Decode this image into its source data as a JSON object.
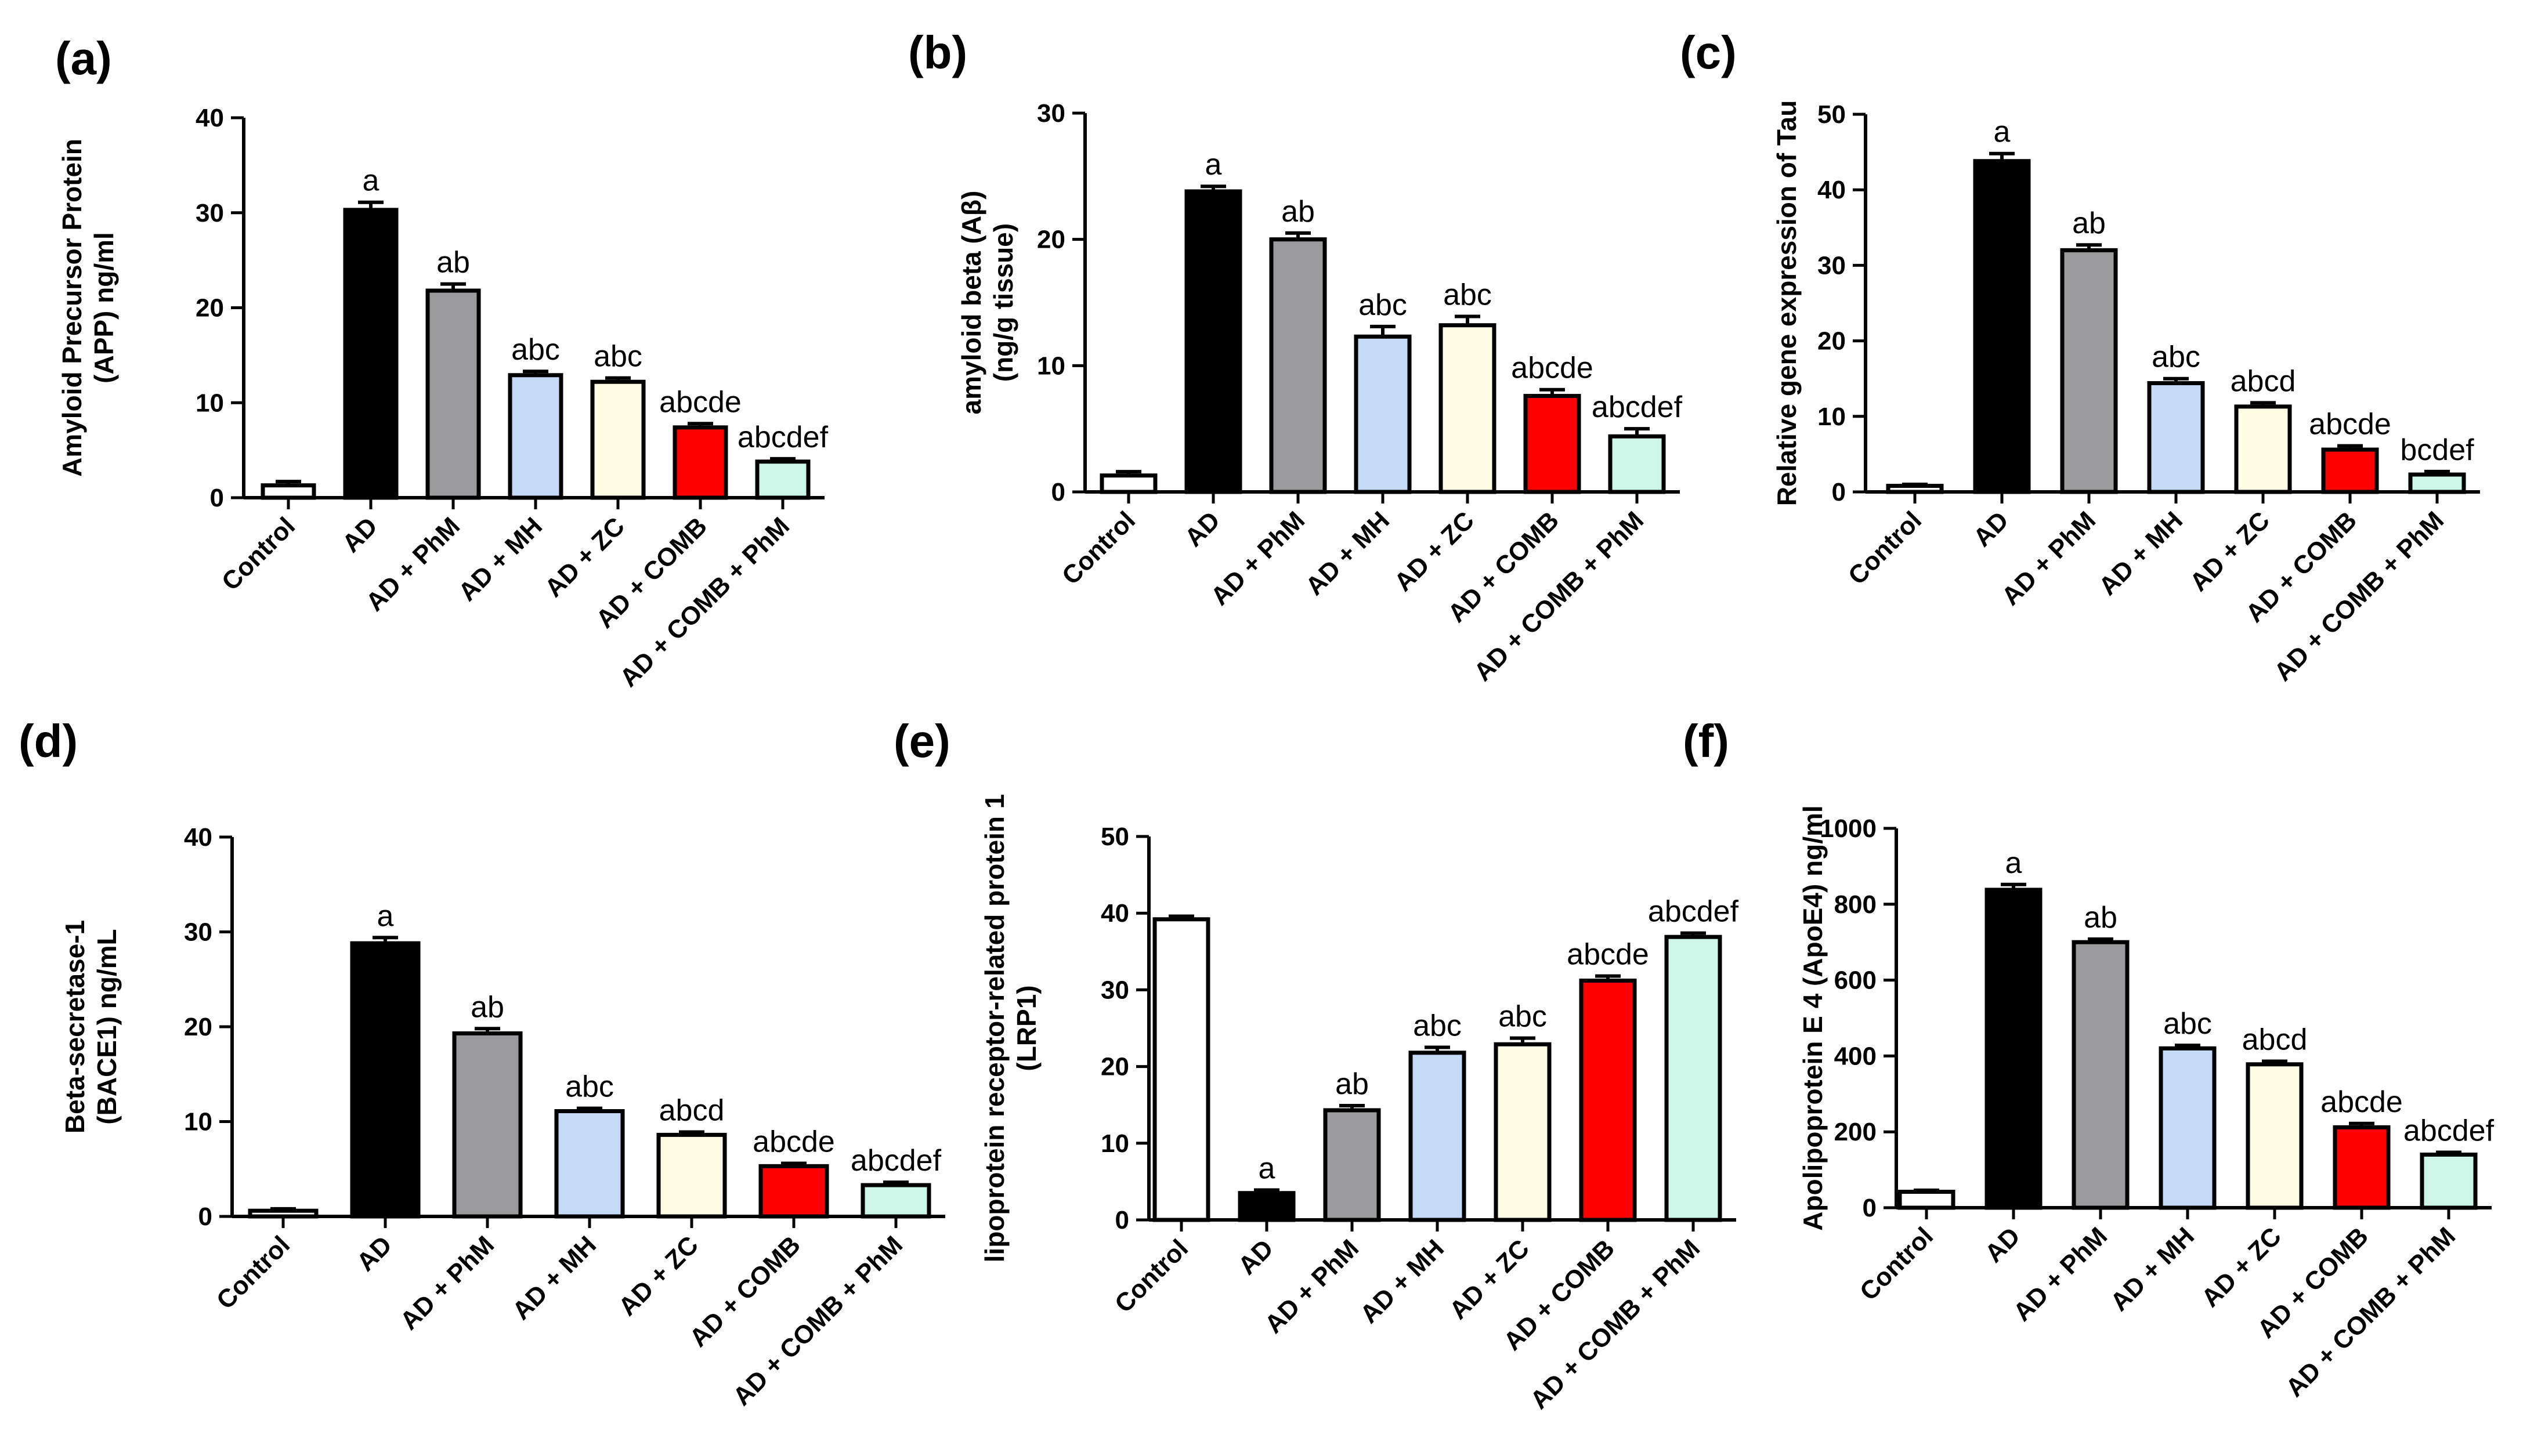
{
  "colors": {
    "Control": "#ffffff",
    "AD": "#000000",
    "AD + PhM": "#9b9b9e",
    "AD + MH": "#c5daf7",
    "AD + ZC": "#fffde3",
    "AD + COMB": "#ff0000",
    "AD + COMB + PhM": "#cdf6e8"
  },
  "chart_data": [
    {
      "type": "bar",
      "panel": "(a)",
      "ylabel": "Amyloid Precursor Protein (APP) ng/ml",
      "ylabel_lines": [
        "Amyloid Precursor Protein",
        "(APP) ng/ml"
      ],
      "categories": [
        "Control",
        "AD",
        "AD + PhM",
        "AD + MH",
        "AD + ZC",
        "AD + COMB",
        "AD + COMB + PhM"
      ],
      "values": [
        1.3,
        30.3,
        21.8,
        12.9,
        12.2,
        7.4,
        3.8
      ],
      "errors": [
        0.4,
        0.8,
        0.7,
        0.4,
        0.4,
        0.4,
        0.3
      ],
      "significance": [
        "",
        "a",
        "ab",
        "abc",
        "abc",
        "abcde",
        "abcdef"
      ],
      "ylim": [
        0,
        40
      ],
      "yticks": [
        0,
        10,
        20,
        30,
        40
      ],
      "grid": false,
      "legend": "none"
    },
    {
      "type": "bar",
      "panel": "(b)",
      "ylabel": "amyloid beta (Aβ) (ng/g tissue)",
      "ylabel_lines": [
        "amyloid beta (Aβ)",
        "(ng/g tissue)"
      ],
      "categories": [
        "Control",
        "AD",
        "AD + PhM",
        "AD + MH",
        "AD + ZC",
        "AD + COMB",
        "AD + COMB + PhM"
      ],
      "values": [
        1.3,
        23.8,
        20.0,
        12.3,
        13.2,
        7.6,
        4.4
      ],
      "errors": [
        0.3,
        0.4,
        0.5,
        0.8,
        0.7,
        0.5,
        0.6
      ],
      "significance": [
        "",
        "a",
        "ab",
        "abc",
        "abc",
        "abcde",
        "abcdef"
      ],
      "ylim": [
        0,
        30
      ],
      "yticks": [
        0,
        10,
        20,
        30
      ],
      "grid": false,
      "legend": "none"
    },
    {
      "type": "bar",
      "panel": "(c)",
      "ylabel": "Relative gene expression of Tau",
      "ylabel_lines": [
        "Relative gene expression of Tau"
      ],
      "categories": [
        "Control",
        "AD",
        "AD + PhM",
        "AD + MH",
        "AD + ZC",
        "AD + COMB",
        "AD + COMB + PhM"
      ],
      "values": [
        0.8,
        43.8,
        32.0,
        14.4,
        11.3,
        5.6,
        2.3
      ],
      "errors": [
        0.2,
        1.0,
        0.7,
        0.6,
        0.5,
        0.5,
        0.4
      ],
      "significance": [
        "",
        "a",
        "ab",
        "abc",
        "abcd",
        "abcde",
        "bcdef"
      ],
      "ylim": [
        0,
        50
      ],
      "yticks": [
        0,
        10,
        20,
        30,
        40,
        50
      ],
      "grid": false,
      "legend": "none"
    },
    {
      "type": "bar",
      "panel": "(d)",
      "ylabel": "Beta-secretase-1 (BACE1) ng/mL",
      "ylabel_lines": [
        "Beta-secretase-1",
        "(BACE1) ng/mL"
      ],
      "categories": [
        "Control",
        "AD",
        "AD + PhM",
        "AD + MH",
        "AD + ZC",
        "AD + COMB",
        "AD + COMB + PhM"
      ],
      "values": [
        0.6,
        28.8,
        19.3,
        11.1,
        8.6,
        5.3,
        3.3
      ],
      "errors": [
        0.2,
        0.6,
        0.5,
        0.3,
        0.3,
        0.3,
        0.3
      ],
      "significance": [
        "",
        "a",
        "ab",
        "abc",
        "abcd",
        "abcde",
        "abcdef"
      ],
      "ylim": [
        0,
        40
      ],
      "yticks": [
        0,
        10,
        20,
        30,
        40
      ],
      "grid": false,
      "legend": "none"
    },
    {
      "type": "bar",
      "panel": "(e)",
      "ylabel": "lipoprotein receptor-related protein 1 (LRP1)",
      "ylabel_lines": [
        "lipoprotein receptor-related protein 1",
        "(LRP1)"
      ],
      "categories": [
        "Control",
        "AD",
        "AD + PhM",
        "AD + MH",
        "AD + ZC",
        "AD + COMB",
        "AD + COMB + PhM"
      ],
      "values": [
        39.2,
        3.5,
        14.3,
        21.8,
        22.9,
        31.2,
        36.9
      ],
      "errors": [
        0.4,
        0.4,
        0.6,
        0.7,
        0.8,
        0.6,
        0.5
      ],
      "significance": [
        "",
        "a",
        "ab",
        "abc",
        "abc",
        "abcde",
        "abcdef"
      ],
      "ylim": [
        0,
        50
      ],
      "yticks": [
        0,
        10,
        20,
        30,
        40,
        50
      ],
      "grid": false,
      "legend": "none"
    },
    {
      "type": "bar",
      "panel": "(f)",
      "ylabel": "Apolipoprotein E 4 (ApoE4) ng/ml",
      "ylabel_lines": [
        "Apolipoprotein E 4 (ApoE4) ng/ml"
      ],
      "categories": [
        "Control",
        "AD",
        "AD + PhM",
        "AD + MH",
        "AD + ZC",
        "AD + COMB",
        "AD + COMB + PhM"
      ],
      "values": [
        42,
        838,
        700,
        420,
        378,
        212,
        140
      ],
      "errors": [
        4,
        14,
        8,
        8,
        8,
        10,
        6
      ],
      "significance": [
        "",
        "a",
        "ab",
        "abc",
        "abcd",
        "abcde",
        "abcdef"
      ],
      "ylim": [
        0,
        1000
      ],
      "yticks": [
        0,
        200,
        400,
        600,
        800,
        1000
      ],
      "grid": false,
      "legend": "none"
    }
  ]
}
